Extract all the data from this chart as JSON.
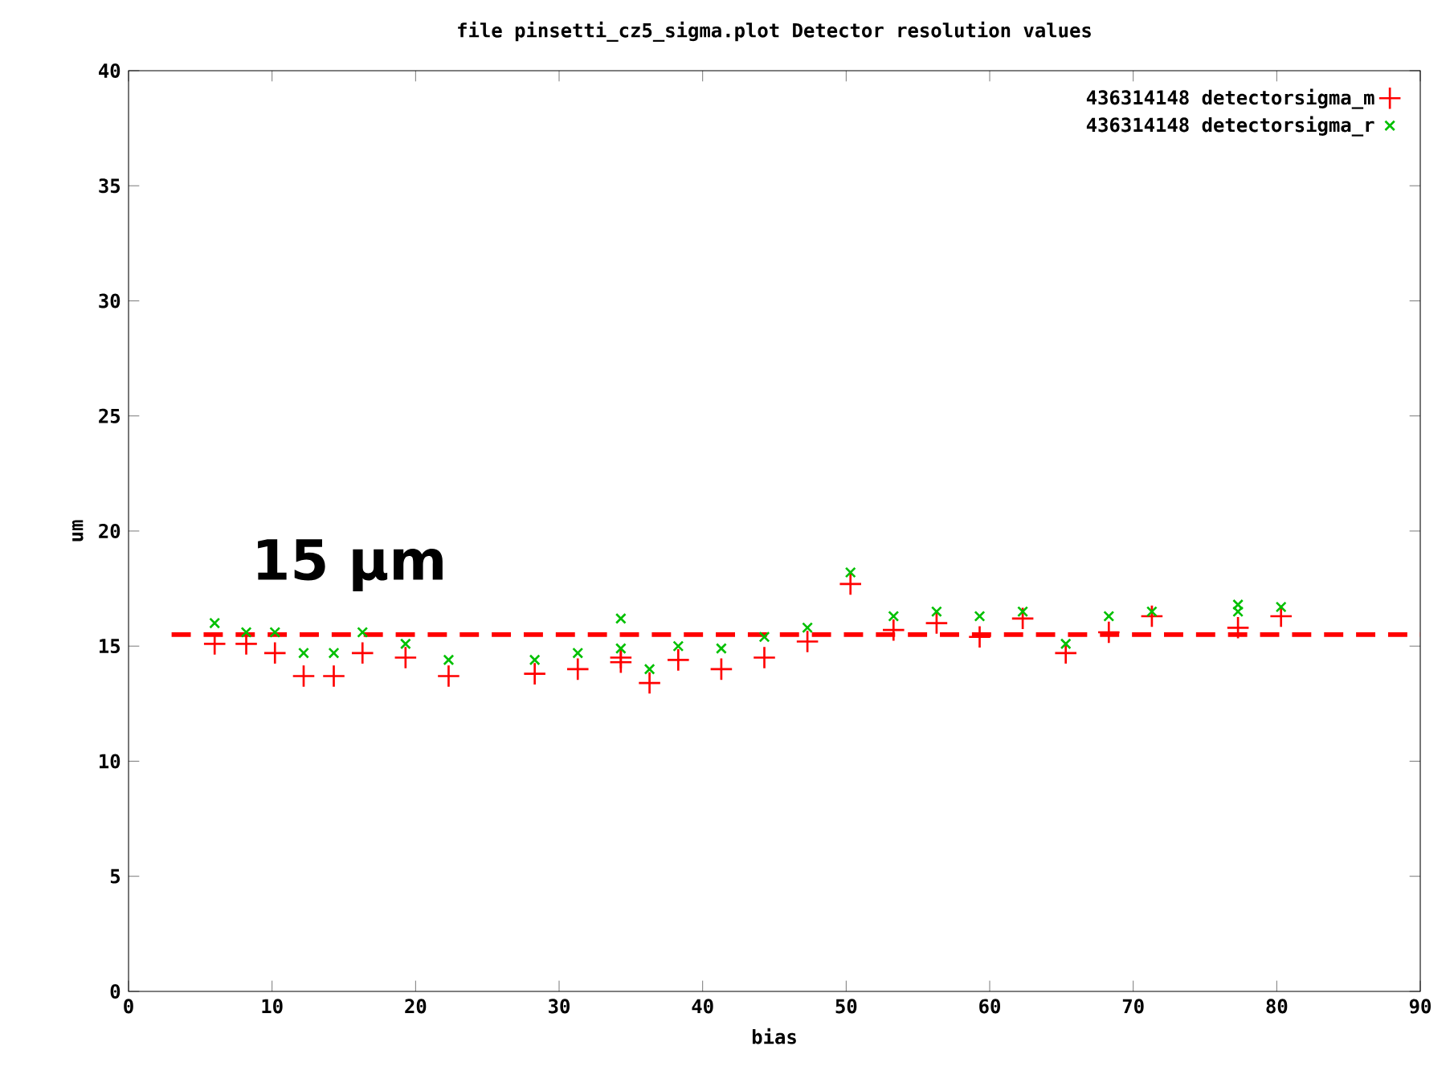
{
  "chart_data": {
    "type": "scatter",
    "title": "file pinsetti_cz5_sigma.plot    Detector resolution values",
    "xlabel": "bias",
    "ylabel": "um",
    "xlim": [
      0,
      90
    ],
    "xticks": [
      0,
      10,
      20,
      30,
      40,
      50,
      60,
      70,
      80,
      90
    ],
    "ylim": [
      0,
      40
    ],
    "yticks": [
      0,
      5,
      10,
      15,
      20,
      25,
      30,
      35,
      40
    ],
    "legend": "top right",
    "grid": false,
    "ref_lines": [
      {
        "axis": "y",
        "value": 15.5,
        "label": "15 μm",
        "color": "#ff0000",
        "line_style": "dashed"
      }
    ],
    "series": [
      {
        "name": "436314148 detectorsigma_m",
        "color": "#ff0000",
        "marker": "plus",
        "x": [
          6,
          8.2,
          10.2,
          12.2,
          14.3,
          16.3,
          19.3,
          22.3,
          28.3,
          31.3,
          34.3,
          34.3,
          36.3,
          38.3,
          41.3,
          44.3,
          47.3,
          50.3,
          53.3,
          56.3,
          59.3,
          62.3,
          65.3,
          68.3,
          71.3,
          77.3,
          80.3
        ],
        "values": [
          15.1,
          15.1,
          14.7,
          13.7,
          13.7,
          14.7,
          14.5,
          13.7,
          13.8,
          14.0,
          14.5,
          14.3,
          13.4,
          14.4,
          14.0,
          14.5,
          15.2,
          17.7,
          15.7,
          16.0,
          15.4,
          16.2,
          14.7,
          15.6,
          16.3,
          15.8,
          16.3
        ]
      },
      {
        "name": "436314148 detectorsigma_r",
        "color": "#00c000",
        "marker": "cross",
        "x": [
          6,
          8.2,
          10.2,
          12.2,
          14.3,
          16.3,
          19.3,
          22.3,
          28.3,
          31.3,
          34.3,
          34.3,
          36.3,
          38.3,
          41.3,
          44.3,
          47.3,
          50.3,
          53.3,
          56.3,
          59.3,
          62.3,
          65.3,
          68.3,
          71.3,
          77.3,
          77.3,
          80.3
        ],
        "values": [
          16.0,
          15.6,
          15.6,
          14.7,
          14.7,
          15.6,
          15.1,
          14.4,
          14.4,
          14.7,
          16.2,
          14.9,
          14.0,
          15.0,
          14.9,
          15.4,
          15.8,
          18.2,
          16.3,
          16.5,
          16.3,
          16.5,
          15.1,
          16.3,
          16.5,
          16.8,
          16.5,
          16.7
        ]
      }
    ]
  }
}
